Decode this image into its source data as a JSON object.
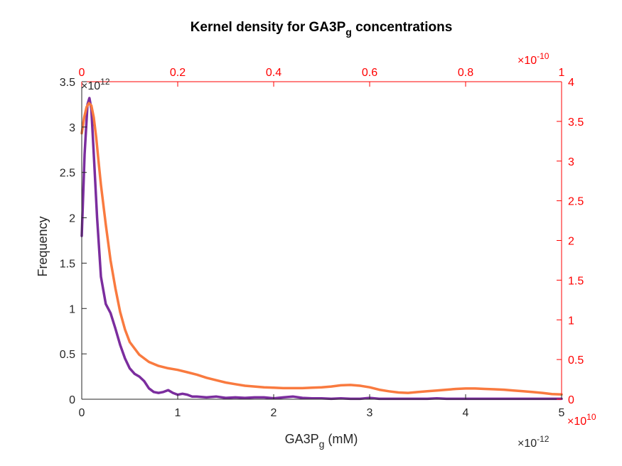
{
  "chart_data": {
    "type": "line",
    "title": "Kernel density for GA3P",
    "title_subscript": "g",
    "title_suffix": " concentrations",
    "xlabel": "GA3P",
    "xlabel_subscript": "g",
    "xlabel_suffix": " (mM)",
    "ylabel": "Frequency",
    "grid": false,
    "colors": {
      "series_bottom": "#7b2d9e",
      "series_top": "#f97a3f",
      "right_top_axes": "#ff0000",
      "left_bottom_axes": "#262626"
    },
    "axes": {
      "x_bottom": {
        "lim": [
          0,
          5
        ],
        "ticks": [
          0,
          1,
          2,
          3,
          4,
          5
        ],
        "tick_labels": [
          "0",
          "1",
          "2",
          "3",
          "4",
          "5"
        ],
        "exponent_label": "×10",
        "exponent": "-12"
      },
      "y_left": {
        "lim": [
          0,
          3.5
        ],
        "ticks": [
          0,
          0.5,
          1,
          1.5,
          2,
          2.5,
          3,
          3.5
        ],
        "tick_labels": [
          "0",
          "0.5",
          "1",
          "1.5",
          "2",
          "2.5",
          "3",
          "3.5"
        ],
        "exponent_label": "×10",
        "exponent": "12"
      },
      "x_top": {
        "lim": [
          0,
          1
        ],
        "ticks": [
          0,
          0.2,
          0.4,
          0.6,
          0.8,
          1
        ],
        "tick_labels": [
          "0",
          "0.2",
          "0.4",
          "0.6",
          "0.8",
          "1"
        ],
        "exponent_label": "×10",
        "exponent": "-10"
      },
      "y_right": {
        "lim": [
          0,
          4
        ],
        "ticks": [
          0,
          0.5,
          1,
          1.5,
          2,
          2.5,
          3,
          3.5,
          4
        ],
        "tick_labels": [
          "0",
          "0.5",
          "1",
          "1.5",
          "2",
          "2.5",
          "3",
          "3.5",
          "4"
        ],
        "exponent_label": "×10",
        "exponent": "10"
      }
    },
    "series": [
      {
        "axes": "bottom-left",
        "x": [
          0,
          0.03,
          0.06,
          0.08,
          0.1,
          0.13,
          0.16,
          0.2,
          0.25,
          0.3,
          0.35,
          0.4,
          0.45,
          0.5,
          0.55,
          0.6,
          0.65,
          0.7,
          0.75,
          0.8,
          0.85,
          0.9,
          0.95,
          1.0,
          1.05,
          1.1,
          1.15,
          1.2,
          1.3,
          1.4,
          1.5,
          1.6,
          1.7,
          1.8,
          1.9,
          2.0,
          2.1,
          2.2,
          2.3,
          2.4,
          2.5,
          2.6,
          2.7,
          2.8,
          2.9,
          3.0,
          3.1,
          3.2,
          3.3,
          3.4,
          3.5,
          3.6,
          3.7,
          3.8,
          3.9,
          4.0,
          4.2,
          4.4,
          4.6,
          4.8,
          5.0
        ],
        "y": [
          1.8,
          2.7,
          3.25,
          3.32,
          3.2,
          2.6,
          2.0,
          1.35,
          1.05,
          0.95,
          0.78,
          0.6,
          0.45,
          0.34,
          0.28,
          0.25,
          0.2,
          0.12,
          0.08,
          0.07,
          0.08,
          0.1,
          0.07,
          0.05,
          0.06,
          0.05,
          0.03,
          0.03,
          0.02,
          0.03,
          0.015,
          0.02,
          0.015,
          0.02,
          0.02,
          0.01,
          0.02,
          0.03,
          0.015,
          0.01,
          0.01,
          0.005,
          0.01,
          0.005,
          0.005,
          0.015,
          0.005,
          0.005,
          0.005,
          0.005,
          0.005,
          0.005,
          0.01,
          0.005,
          0.005,
          0.005,
          0.005,
          0.005,
          0.005,
          0.005,
          0.005
        ]
      },
      {
        "axes": "top-right",
        "x": [
          0,
          0.005,
          0.01,
          0.015,
          0.02,
          0.025,
          0.03,
          0.035,
          0.04,
          0.05,
          0.06,
          0.07,
          0.08,
          0.09,
          0.1,
          0.12,
          0.14,
          0.16,
          0.18,
          0.2,
          0.22,
          0.24,
          0.26,
          0.28,
          0.3,
          0.32,
          0.34,
          0.36,
          0.38,
          0.4,
          0.42,
          0.44,
          0.46,
          0.48,
          0.5,
          0.52,
          0.54,
          0.56,
          0.58,
          0.6,
          0.62,
          0.64,
          0.66,
          0.68,
          0.7,
          0.72,
          0.74,
          0.76,
          0.78,
          0.8,
          0.82,
          0.84,
          0.86,
          0.88,
          0.9,
          0.92,
          0.94,
          0.96,
          0.98,
          1.0
        ],
        "y": [
          3.35,
          3.55,
          3.68,
          3.73,
          3.7,
          3.55,
          3.3,
          3.0,
          2.7,
          2.2,
          1.75,
          1.4,
          1.1,
          0.88,
          0.72,
          0.56,
          0.47,
          0.42,
          0.39,
          0.37,
          0.34,
          0.31,
          0.27,
          0.24,
          0.21,
          0.19,
          0.17,
          0.16,
          0.15,
          0.145,
          0.14,
          0.14,
          0.14,
          0.145,
          0.15,
          0.16,
          0.175,
          0.18,
          0.17,
          0.15,
          0.12,
          0.1,
          0.085,
          0.08,
          0.09,
          0.1,
          0.11,
          0.12,
          0.13,
          0.135,
          0.135,
          0.13,
          0.125,
          0.12,
          0.11,
          0.1,
          0.09,
          0.08,
          0.065,
          0.06
        ]
      }
    ]
  }
}
